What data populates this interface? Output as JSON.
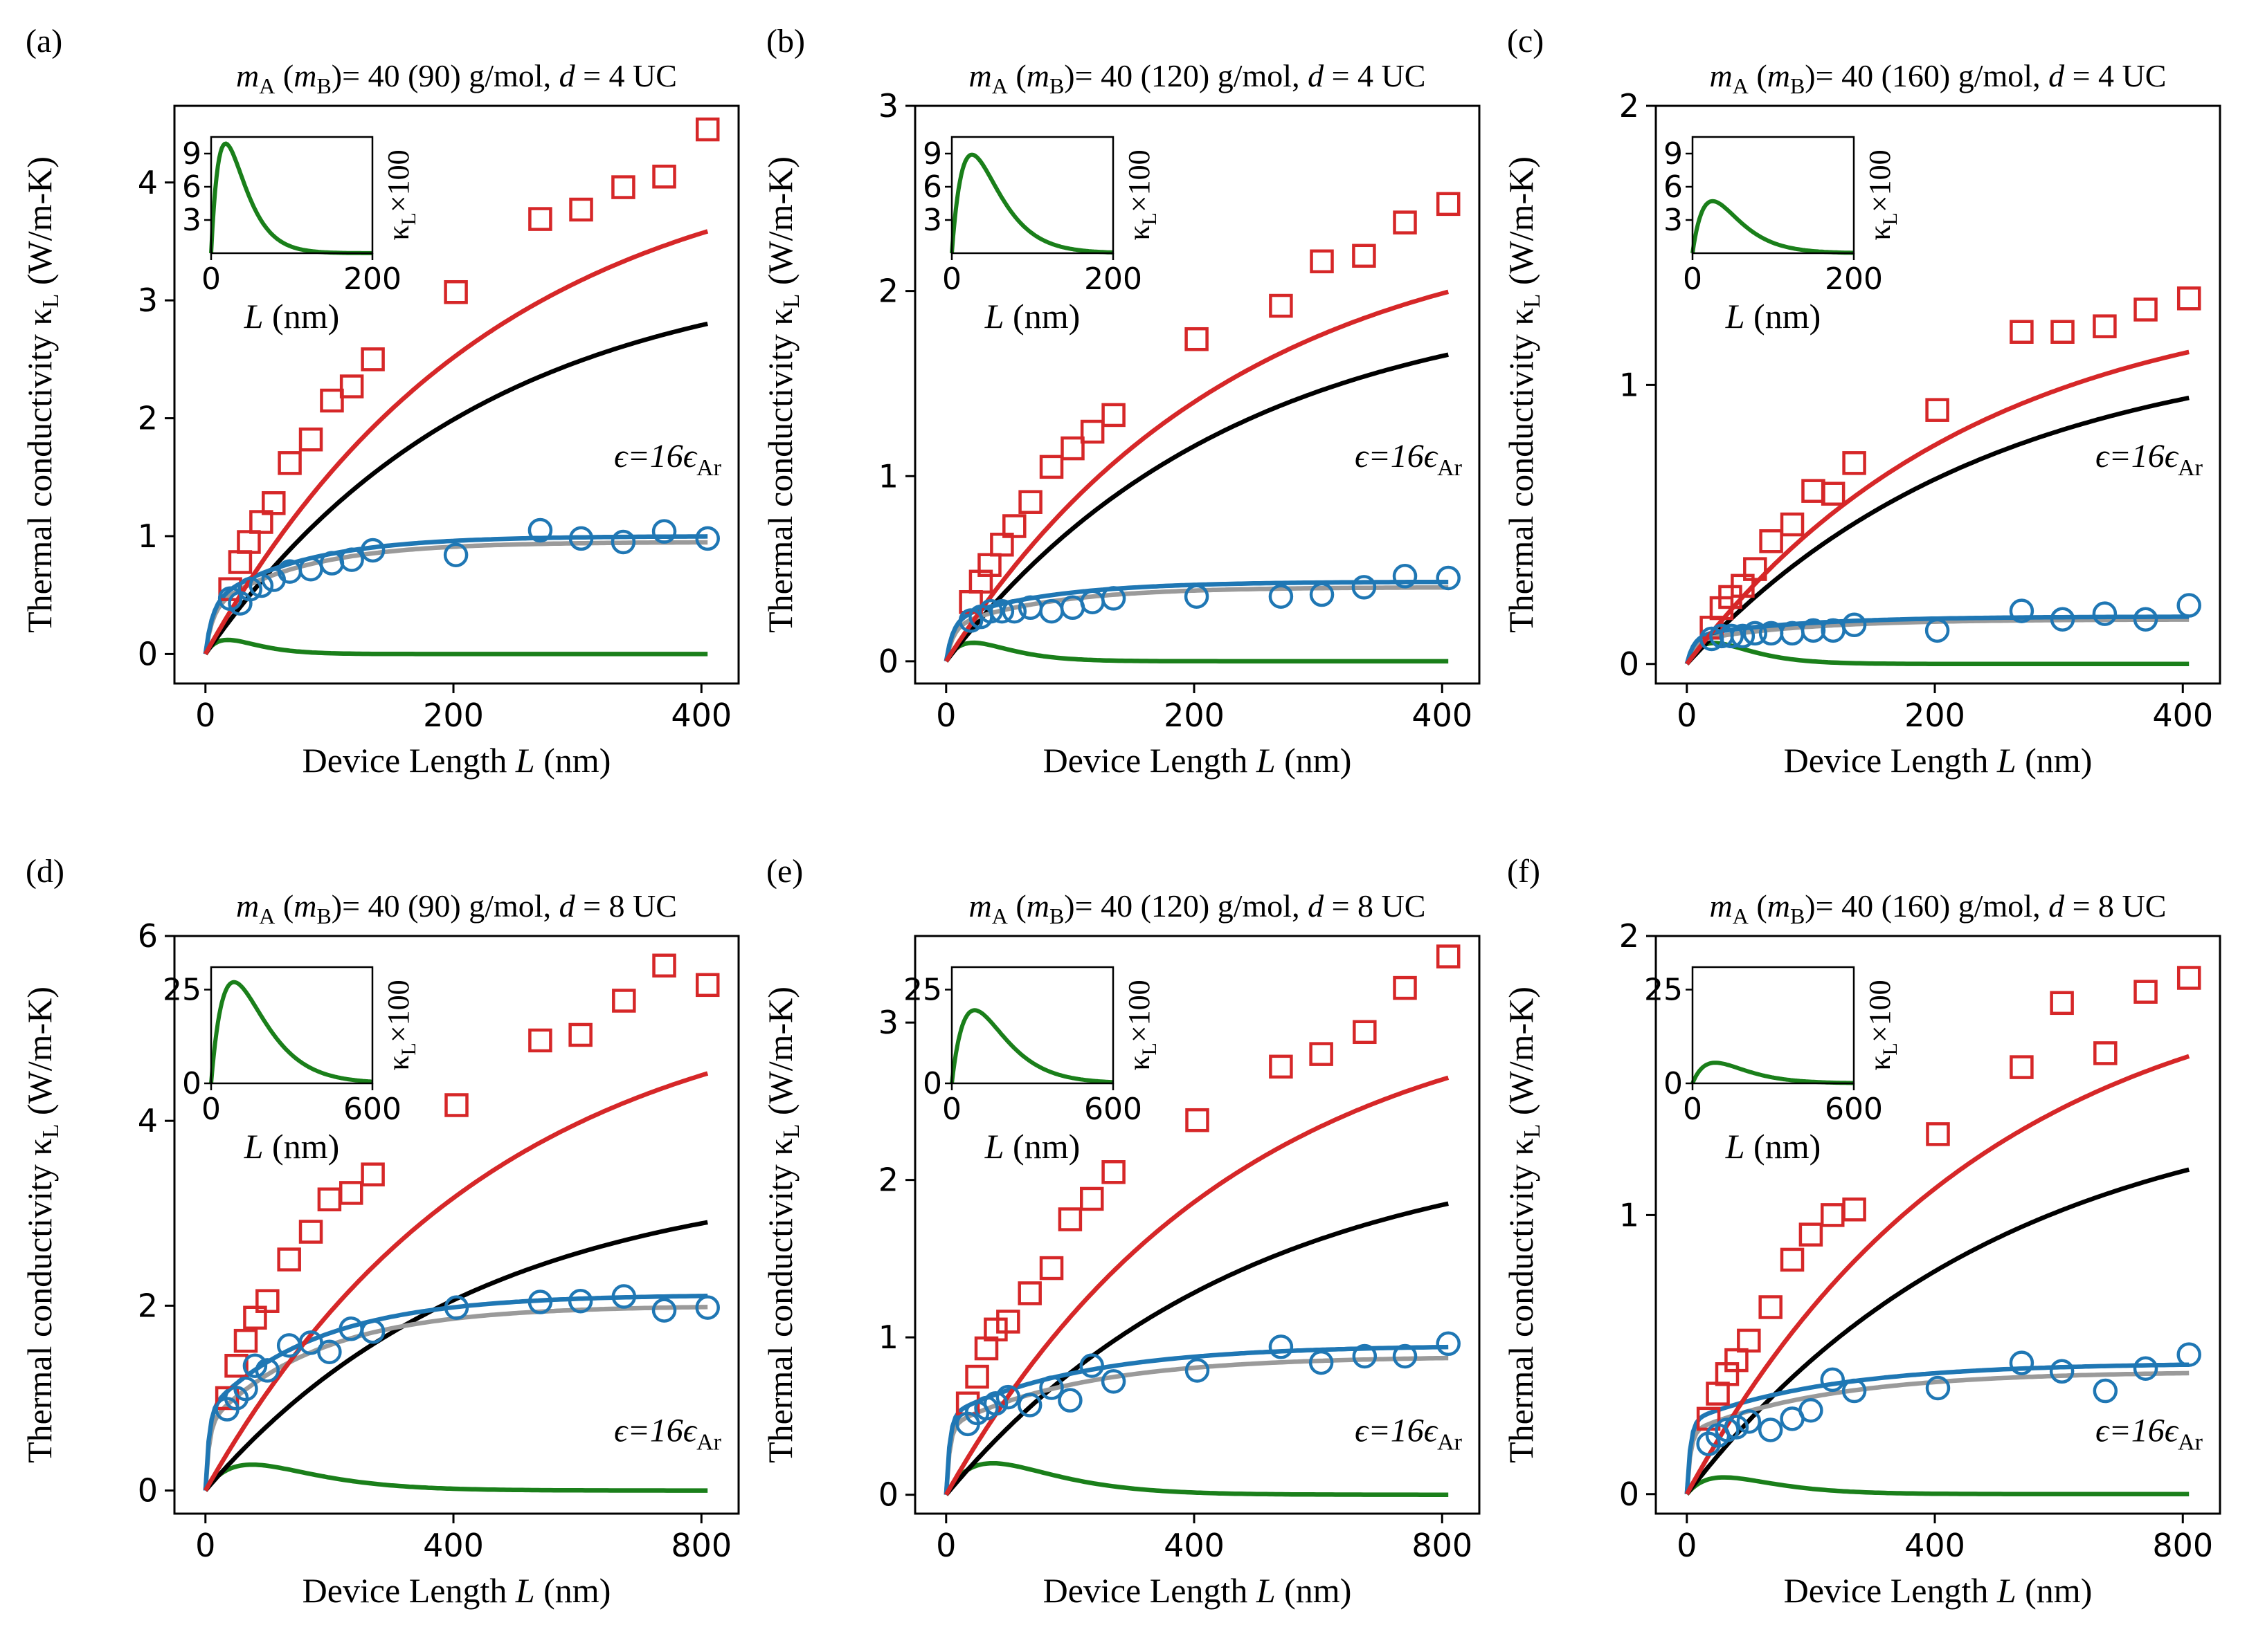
{
  "figure": {
    "xlabel_prefix": "Device Length ",
    "xlabel_var": "L",
    "xlabel_unit": " (nm)",
    "ylabel_text": "Thermal conductivity κ",
    "ylabel_sub": "L",
    "ylabel_unit": " (W/m-K)",
    "inset_xlabel_var": "L",
    "inset_xlabel_unit": " (nm)",
    "inset_ylabel_kappa": "κ",
    "inset_ylabel_sub": "L",
    "inset_ylabel_times": "×100",
    "epsilon_text": "ϵ=16ϵ",
    "epsilon_sub": "Ar",
    "colors": {
      "red": "#d62728",
      "blue": "#1f77b4",
      "black": "#000000",
      "gray": "#9a9a9a",
      "green": "#1a7f1a"
    }
  },
  "chart_data": [
    {
      "type": "line",
      "panel_label": "(a)",
      "title": {
        "mA": "40",
        "mB": "90",
        "d": "4"
      },
      "title_static": {
        "m": "m",
        "subA": "A",
        "subB": "B",
        "paren_open": " (",
        "paren_close": ")",
        "eq": "= ",
        "space": " ",
        "unit": " g/mol, ",
        "d_var": "d",
        "d_eq": " = ",
        "d_unit": " UC"
      },
      "xlim": [
        -25,
        430
      ],
      "ylim": [
        -0.25,
        4.65
      ],
      "xticks": [
        0,
        200,
        400
      ],
      "yticks": [
        0,
        1,
        2,
        3,
        4
      ],
      "fits": {
        "red": [
          4.33,
          230
        ],
        "black": [
          3.33,
          220
        ],
        "blue": [
          1.0,
          0.42,
          75
        ],
        "gray": [
          0.95,
          0.37,
          75
        ],
        "green": [
          0.12,
          18
        ]
      },
      "markers_red": [
        [
          20,
          0.55
        ],
        [
          28,
          0.78
        ],
        [
          35,
          0.95
        ],
        [
          45,
          1.12
        ],
        [
          55,
          1.28
        ],
        [
          68,
          1.62
        ],
        [
          85,
          1.82
        ],
        [
          102,
          2.15
        ],
        [
          118,
          2.27
        ],
        [
          135,
          2.5
        ],
        [
          202,
          3.07
        ],
        [
          270,
          3.69
        ],
        [
          303,
          3.77
        ],
        [
          337,
          3.96
        ],
        [
          370,
          4.05
        ],
        [
          405,
          4.45
        ]
      ],
      "markers_blue": [
        [
          20,
          0.47
        ],
        [
          28,
          0.43
        ],
        [
          36,
          0.55
        ],
        [
          45,
          0.58
        ],
        [
          55,
          0.63
        ],
        [
          68,
          0.7
        ],
        [
          85,
          0.72
        ],
        [
          102,
          0.77
        ],
        [
          118,
          0.8
        ],
        [
          135,
          0.88
        ],
        [
          202,
          0.84
        ],
        [
          270,
          1.05
        ],
        [
          303,
          0.98
        ],
        [
          337,
          0.95
        ],
        [
          370,
          1.04
        ],
        [
          405,
          0.98
        ]
      ],
      "inset": {
        "xlim": [
          0,
          200
        ],
        "ylim": [
          0,
          10.5
        ],
        "xticks": [
          0,
          200
        ],
        "yticks": [
          3,
          6,
          9
        ],
        "peak": 9.9,
        "peak_x": 18
      }
    },
    {
      "type": "line",
      "panel_label": "(b)",
      "title": {
        "mA": "40",
        "mB": "120",
        "d": "4"
      },
      "title_static": {
        "m": "m",
        "subA": "A",
        "subB": "B",
        "paren_open": " (",
        "paren_close": ")",
        "eq": "= ",
        "space": " ",
        "unit": " g/mol, ",
        "d_var": "d",
        "d_eq": " = ",
        "d_unit": " UC"
      },
      "xlim": [
        -25,
        430
      ],
      "ylim": [
        -0.12,
        3.0
      ],
      "xticks": [
        0,
        200,
        400
      ],
      "yticks": [
        0,
        1,
        2,
        3
      ],
      "fits": {
        "red": [
          2.41,
          230
        ],
        "black": [
          2.0,
          230
        ],
        "blue": [
          0.43,
          0.22,
          80
        ],
        "gray": [
          0.4,
          0.18,
          80
        ],
        "green": [
          0.1,
          22
        ]
      },
      "markers_red": [
        [
          20,
          0.32
        ],
        [
          28,
          0.43
        ],
        [
          35,
          0.52
        ],
        [
          45,
          0.63
        ],
        [
          55,
          0.73
        ],
        [
          68,
          0.86
        ],
        [
          85,
          1.05
        ],
        [
          102,
          1.15
        ],
        [
          118,
          1.24
        ],
        [
          135,
          1.33
        ],
        [
          202,
          1.74
        ],
        [
          270,
          1.92
        ],
        [
          303,
          2.16
        ],
        [
          337,
          2.19
        ],
        [
          370,
          2.37
        ],
        [
          405,
          2.47
        ]
      ],
      "markers_blue": [
        [
          20,
          0.22
        ],
        [
          28,
          0.24
        ],
        [
          36,
          0.27
        ],
        [
          45,
          0.27
        ],
        [
          55,
          0.27
        ],
        [
          68,
          0.29
        ],
        [
          85,
          0.27
        ],
        [
          102,
          0.29
        ],
        [
          118,
          0.32
        ],
        [
          135,
          0.34
        ],
        [
          202,
          0.35
        ],
        [
          270,
          0.35
        ],
        [
          303,
          0.36
        ],
        [
          337,
          0.4
        ],
        [
          370,
          0.46
        ],
        [
          405,
          0.45
        ]
      ],
      "inset": {
        "xlim": [
          0,
          200
        ],
        "ylim": [
          0,
          10.5
        ],
        "xticks": [
          0,
          200
        ],
        "yticks": [
          3,
          6,
          9
        ],
        "peak": 8.9,
        "peak_x": 25
      }
    },
    {
      "type": "line",
      "panel_label": "(c)",
      "title": {
        "mA": "40",
        "mB": "160",
        "d": "4"
      },
      "title_static": {
        "m": "m",
        "subA": "A",
        "subB": "B",
        "paren_open": " (",
        "paren_close": ")",
        "eq": "= ",
        "space": " ",
        "unit": " g/mol, ",
        "d_var": "d",
        "d_eq": " = ",
        "d_unit": " UC"
      },
      "xlim": [
        -25,
        430
      ],
      "ylim": [
        -0.07,
        2.0
      ],
      "xticks": [
        0,
        200,
        400
      ],
      "yticks": [
        0,
        1,
        2
      ],
      "fits": {
        "red": [
          1.35,
          230
        ],
        "black": [
          1.17,
          240
        ],
        "blue": [
          0.17,
          0.1,
          90
        ],
        "gray": [
          0.16,
          0.08,
          90
        ],
        "green": [
          0.075,
          22
        ]
      },
      "markers_red": [
        [
          20,
          0.13
        ],
        [
          28,
          0.2
        ],
        [
          35,
          0.24
        ],
        [
          45,
          0.28
        ],
        [
          55,
          0.34
        ],
        [
          68,
          0.44
        ],
        [
          85,
          0.5
        ],
        [
          102,
          0.62
        ],
        [
          118,
          0.61
        ],
        [
          135,
          0.72
        ],
        [
          202,
          0.91
        ],
        [
          270,
          1.19
        ],
        [
          303,
          1.19
        ],
        [
          337,
          1.21
        ],
        [
          370,
          1.27
        ],
        [
          405,
          1.31
        ]
      ],
      "markers_blue": [
        [
          20,
          0.09
        ],
        [
          28,
          0.1
        ],
        [
          36,
          0.1
        ],
        [
          45,
          0.1
        ],
        [
          55,
          0.11
        ],
        [
          68,
          0.11
        ],
        [
          85,
          0.11
        ],
        [
          102,
          0.12
        ],
        [
          118,
          0.12
        ],
        [
          135,
          0.14
        ],
        [
          202,
          0.12
        ],
        [
          270,
          0.19
        ],
        [
          303,
          0.16
        ],
        [
          337,
          0.18
        ],
        [
          370,
          0.16
        ],
        [
          405,
          0.21
        ]
      ],
      "inset": {
        "xlim": [
          0,
          200
        ],
        "ylim": [
          0,
          10.5
        ],
        "xticks": [
          0,
          200
        ],
        "yticks": [
          3,
          6,
          9
        ],
        "peak": 4.7,
        "peak_x": 25
      }
    },
    {
      "type": "line",
      "panel_label": "(d)",
      "title": {
        "mA": "40",
        "mB": "90",
        "d": "8"
      },
      "title_static": {
        "m": "m",
        "subA": "A",
        "subB": "B",
        "paren_open": " (",
        "paren_close": ")",
        "eq": "= ",
        "space": " ",
        "unit": " g/mol, ",
        "d_var": "d",
        "d_eq": " = ",
        "d_unit": " UC"
      },
      "xlim": [
        -50,
        860
      ],
      "ylim": [
        -0.25,
        6.0
      ],
      "xticks": [
        0,
        400,
        800
      ],
      "yticks": [
        0,
        2,
        4,
        6
      ],
      "fits": {
        "red": [
          5.45,
          460
        ],
        "black": [
          3.45,
          440
        ],
        "blue": [
          2.12,
          0.85,
          180
        ],
        "gray": [
          2.0,
          0.7,
          180
        ],
        "green": [
          0.28,
          75
        ]
      },
      "markers_red": [
        [
          35,
          1.0
        ],
        [
          50,
          1.35
        ],
        [
          65,
          1.62
        ],
        [
          80,
          1.87
        ],
        [
          100,
          2.05
        ],
        [
          135,
          2.5
        ],
        [
          170,
          2.8
        ],
        [
          200,
          3.15
        ],
        [
          235,
          3.22
        ],
        [
          270,
          3.42
        ],
        [
          405,
          4.17
        ],
        [
          540,
          4.87
        ],
        [
          605,
          4.93
        ],
        [
          675,
          5.3
        ],
        [
          740,
          5.68
        ],
        [
          810,
          5.47
        ]
      ],
      "markers_blue": [
        [
          35,
          0.88
        ],
        [
          50,
          1.0
        ],
        [
          65,
          1.1
        ],
        [
          80,
          1.35
        ],
        [
          100,
          1.3
        ],
        [
          135,
          1.57
        ],
        [
          170,
          1.6
        ],
        [
          200,
          1.5
        ],
        [
          235,
          1.75
        ],
        [
          270,
          1.72
        ],
        [
          405,
          1.98
        ],
        [
          540,
          2.04
        ],
        [
          605,
          2.05
        ],
        [
          675,
          2.1
        ],
        [
          740,
          1.95
        ],
        [
          810,
          1.98
        ]
      ],
      "inset": {
        "xlim": [
          0,
          600
        ],
        "ylim": [
          0,
          31
        ],
        "xticks": [
          0,
          600
        ],
        "yticks": [
          0,
          25
        ],
        "peak": 27,
        "peak_x": 85
      }
    },
    {
      "type": "line",
      "panel_label": "(e)",
      "title": {
        "mA": "40",
        "mB": "120",
        "d": "8"
      },
      "title_static": {
        "m": "m",
        "subA": "A",
        "subB": "B",
        "paren_open": " (",
        "paren_close": ")",
        "eq": "= ",
        "space": " ",
        "unit": " g/mol, ",
        "d_var": "d",
        "d_eq": " = ",
        "d_unit": " UC"
      },
      "xlim": [
        -50,
        860
      ],
      "ylim": [
        -0.12,
        3.55
      ],
      "xticks": [
        0,
        400,
        800
      ],
      "yticks": [
        0,
        1,
        2,
        3
      ],
      "fits": {
        "red": [
          3.2,
          460
        ],
        "black": [
          2.27,
          480
        ],
        "blue": [
          0.95,
          0.5,
          220
        ],
        "gray": [
          0.88,
          0.43,
          220
        ],
        "green": [
          0.2,
          75
        ]
      },
      "markers_red": [
        [
          35,
          0.58
        ],
        [
          50,
          0.75
        ],
        [
          65,
          0.93
        ],
        [
          80,
          1.05
        ],
        [
          100,
          1.1
        ],
        [
          135,
          1.28
        ],
        [
          170,
          1.44
        ],
        [
          200,
          1.75
        ],
        [
          235,
          1.88
        ],
        [
          270,
          2.05
        ],
        [
          405,
          2.38
        ],
        [
          540,
          2.72
        ],
        [
          605,
          2.8
        ],
        [
          675,
          2.94
        ],
        [
          740,
          3.22
        ],
        [
          810,
          3.42
        ]
      ],
      "markers_blue": [
        [
          35,
          0.45
        ],
        [
          50,
          0.52
        ],
        [
          65,
          0.55
        ],
        [
          80,
          0.58
        ],
        [
          100,
          0.62
        ],
        [
          135,
          0.57
        ],
        [
          170,
          0.68
        ],
        [
          200,
          0.6
        ],
        [
          235,
          0.82
        ],
        [
          270,
          0.72
        ],
        [
          405,
          0.79
        ],
        [
          540,
          0.94
        ],
        [
          605,
          0.84
        ],
        [
          675,
          0.88
        ],
        [
          740,
          0.88
        ],
        [
          810,
          0.96
        ]
      ],
      "inset": {
        "xlim": [
          0,
          600
        ],
        "ylim": [
          0,
          31
        ],
        "xticks": [
          0,
          600
        ],
        "yticks": [
          0,
          25
        ],
        "peak": 19.5,
        "peak_x": 85
      }
    },
    {
      "type": "line",
      "panel_label": "(f)",
      "title": {
        "mA": "40",
        "mB": "160",
        "d": "8"
      },
      "title_static": {
        "m": "m",
        "subA": "A",
        "subB": "B",
        "paren_open": " (",
        "paren_close": ")",
        "eq": "= ",
        "space": " ",
        "unit": " g/mol, ",
        "d_var": "d",
        "d_eq": " = ",
        "d_unit": " UC"
      },
      "xlim": [
        -50,
        860
      ],
      "ylim": [
        -0.07,
        2.0
      ],
      "xticks": [
        0,
        400,
        800
      ],
      "yticks": [
        0,
        1,
        2
      ],
      "fits": {
        "red": [
          1.91,
          470
        ],
        "black": [
          1.45,
          500
        ],
        "blue": [
          0.47,
          0.26,
          230
        ],
        "gray": [
          0.44,
          0.22,
          230
        ],
        "green": [
          0.06,
          60
        ]
      },
      "markers_red": [
        [
          35,
          0.27
        ],
        [
          50,
          0.36
        ],
        [
          65,
          0.43
        ],
        [
          80,
          0.48
        ],
        [
          100,
          0.55
        ],
        [
          135,
          0.67
        ],
        [
          170,
          0.84
        ],
        [
          200,
          0.93
        ],
        [
          235,
          1.0
        ],
        [
          270,
          1.02
        ],
        [
          405,
          1.29
        ],
        [
          540,
          1.53
        ],
        [
          605,
          1.76
        ],
        [
          675,
          1.58
        ],
        [
          740,
          1.8
        ],
        [
          810,
          1.85
        ]
      ],
      "markers_blue": [
        [
          35,
          0.18
        ],
        [
          50,
          0.21
        ],
        [
          65,
          0.23
        ],
        [
          80,
          0.24
        ],
        [
          100,
          0.26
        ],
        [
          135,
          0.23
        ],
        [
          170,
          0.27
        ],
        [
          200,
          0.3
        ],
        [
          235,
          0.41
        ],
        [
          270,
          0.37
        ],
        [
          405,
          0.38
        ],
        [
          540,
          0.47
        ],
        [
          605,
          0.44
        ],
        [
          675,
          0.37
        ],
        [
          740,
          0.45
        ],
        [
          810,
          0.5
        ]
      ],
      "inset": {
        "xlim": [
          0,
          600
        ],
        "ylim": [
          0,
          31
        ],
        "xticks": [
          0,
          600
        ],
        "yticks": [
          0,
          25
        ],
        "peak": 5.5,
        "peak_x": 85
      }
    }
  ]
}
